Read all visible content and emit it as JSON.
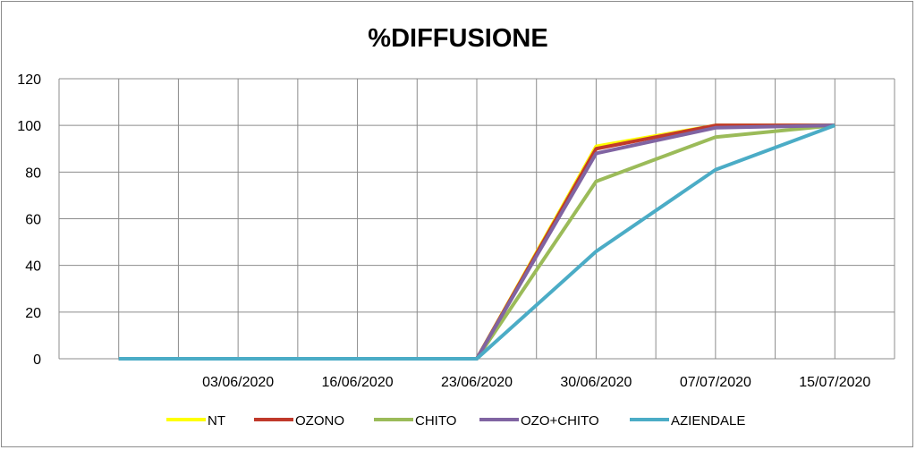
{
  "chart_data": {
    "type": "line",
    "title": "%DIFFUSIONE",
    "xlabel": "",
    "ylabel": "",
    "categories": [
      "",
      "03/06/2020",
      "16/06/2020",
      "23/06/2020",
      "30/06/2020",
      "07/07/2020",
      "15/07/2020"
    ],
    "yticks": [
      0,
      20,
      40,
      60,
      80,
      100,
      120
    ],
    "ylim": [
      0,
      120
    ],
    "grid": true,
    "legend_position": "bottom",
    "series": [
      {
        "name": "NT",
        "color": "#FFFF00",
        "values": [
          0,
          0,
          0,
          0,
          91,
          100,
          100
        ]
      },
      {
        "name": "OZONO",
        "color": "#C0392B",
        "values": [
          0,
          0,
          0,
          0,
          90,
          100,
          100
        ]
      },
      {
        "name": "CHITO",
        "color": "#9BBB59",
        "values": [
          0,
          0,
          0,
          0,
          76,
          95,
          100
        ]
      },
      {
        "name": "OZO+CHITO",
        "color": "#8064A2",
        "values": [
          0,
          0,
          0,
          0,
          88,
          99,
          100
        ]
      },
      {
        "name": "AZIENDALE",
        "color": "#4BACC6",
        "values": [
          0,
          0,
          0,
          0,
          46,
          81,
          100
        ]
      }
    ]
  }
}
